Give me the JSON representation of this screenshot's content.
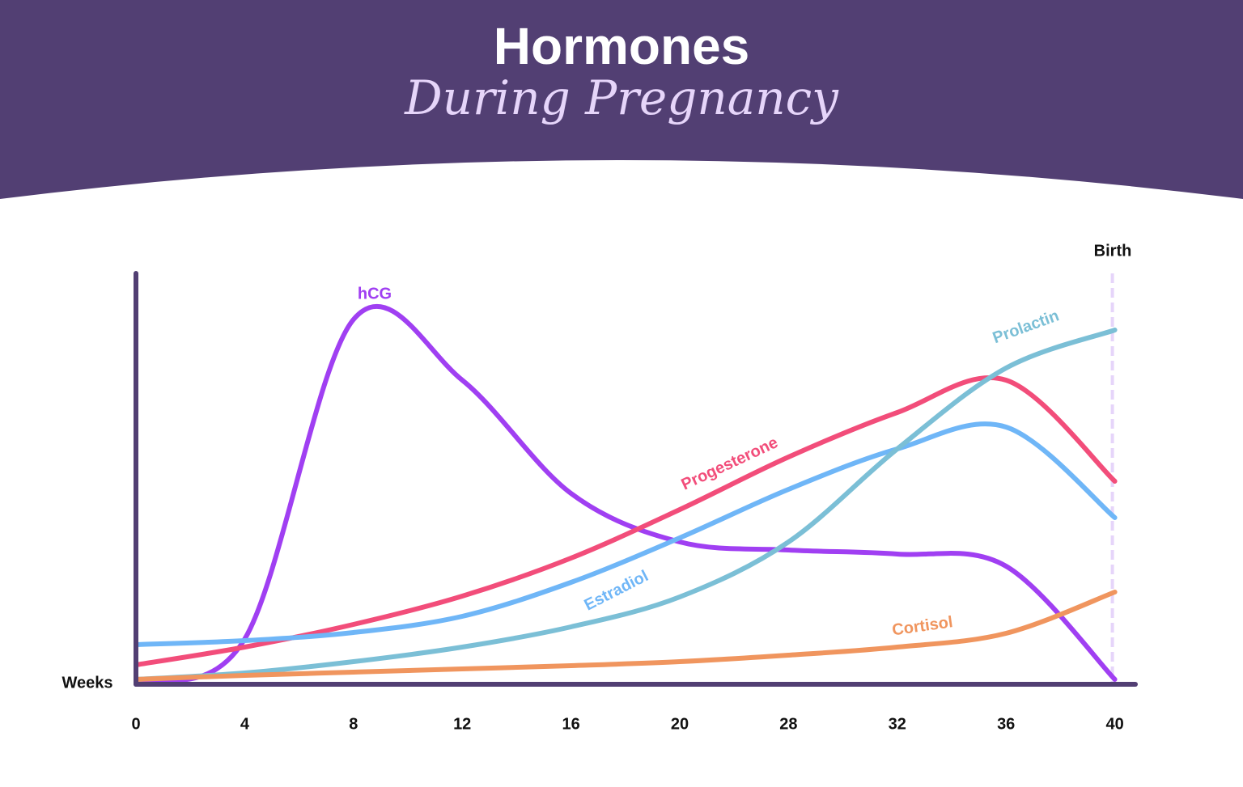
{
  "chart_data": {
    "type": "line",
    "title": "Hormones",
    "subtitle": "During Pregnancy",
    "x_label": "Weeks",
    "annotation": "Birth",
    "categories": [
      "0",
      "4",
      "8",
      "12",
      "16",
      "20",
      "28",
      "32",
      "36",
      "40"
    ],
    "ylim": [
      0,
      100
    ],
    "series": [
      {
        "name": "hCG",
        "color": "#a03ff2",
        "values": [
          0.6,
          11,
          90,
          75,
          47,
          35,
          33,
          32,
          29,
          1
        ]
      },
      {
        "name": "Progesterone",
        "color": "#f24d7a",
        "values": [
          4.6,
          9,
          14.6,
          21.6,
          31,
          43,
          56,
          67,
          75,
          50
        ]
      },
      {
        "name": "Estradiol",
        "color": "#6fb6f7",
        "values": [
          9.6,
          10.6,
          12.6,
          16.6,
          25,
          36,
          48,
          58,
          63.4,
          41
        ]
      },
      {
        "name": "Prolactin",
        "color": "#7bbfd6",
        "values": [
          1,
          2.6,
          5.4,
          9,
          14,
          21.4,
          35,
          58,
          78,
          87.4
        ]
      },
      {
        "name": "Cortisol",
        "color": "#f0955e",
        "values": [
          1,
          2,
          2.8,
          3.6,
          4.4,
          5.4,
          7,
          9,
          12.4,
          22.6
        ]
      }
    ]
  }
}
